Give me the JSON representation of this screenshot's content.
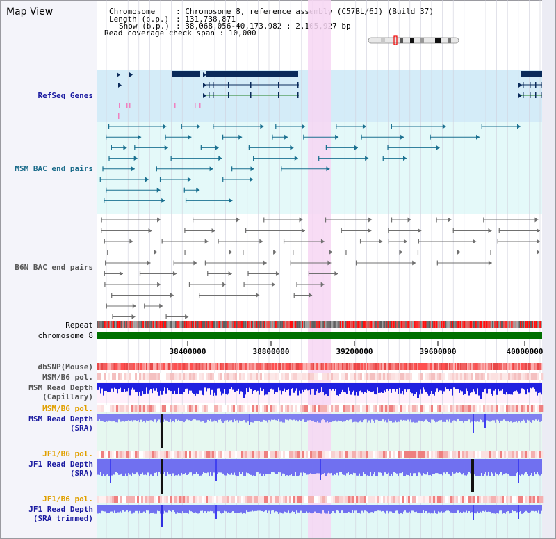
{
  "title": "Map View",
  "info": {
    "chromosome_key": "Chromosome",
    "chromosome_value": "Chromosome 8, reference assembly (C57BL/6J) (Build 37)",
    "length_key": "Length (b.p.)",
    "length_value": "131,738,871",
    "show_key": "Show (b.p.)",
    "show_value": "38,068,056-40,173,982 : 2,105,927 bp",
    "coverage_key": "Read coverage check span",
    "coverage_value": "10,000"
  },
  "tracks": {
    "refseq": "RefSeq Genes",
    "msm_bac": "MSM BAC end pairs",
    "b6n_bac": "B6N BAC end pairs",
    "repeat": "Repeat",
    "chromosome": "chromosome 8",
    "dbsnp": "dbSNP(Mouse)",
    "msm_b6_pol_1": "MSM/B6 pol.",
    "msm_depth_cap_1": "MSM Read Depth",
    "msm_depth_cap_2": "(Capillary)",
    "msm_b6_pol_2": "MSM/B6 pol.",
    "msm_depth_sra_1": "MSM Read Depth",
    "msm_depth_sra_2": "(SRA)",
    "jf1_b6_pol_1": "JF1/B6 pol.",
    "jf1_depth_sra_1": "JF1 Read Depth",
    "jf1_depth_sra_2": "(SRA)",
    "jf1_b6_pol_2": "JF1/B6 pol.",
    "jf1_depth_trim_1": "JF1 Read Depth",
    "jf1_depth_trim_2": "(SRA trimmed)"
  },
  "axis": {
    "ticks": [
      "38400000",
      "38800000",
      "39200000",
      "39600000",
      "40000000"
    ]
  },
  "colors": {
    "label_blue": "#1a1aa0",
    "label_teal": "#1a6b8a",
    "label_grey": "#555555",
    "label_orange": "#e0a000",
    "highlight": "#f7d6f3"
  }
}
